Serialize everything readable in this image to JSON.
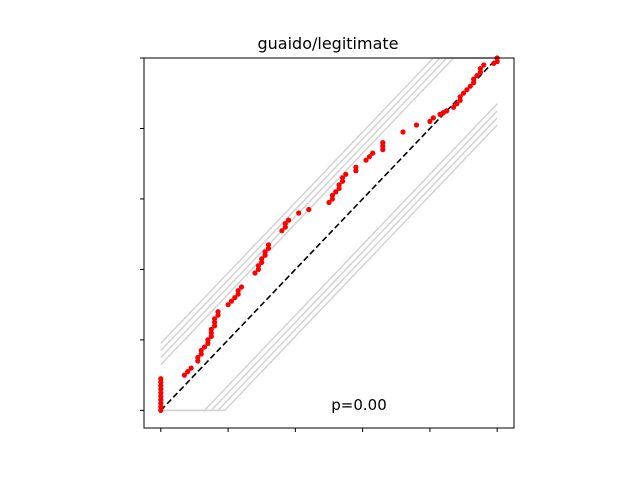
{
  "chart_data": {
    "type": "scatter",
    "title": "guaido/legitimate",
    "xlabel": "",
    "ylabel": "",
    "xlim": [
      -0.05,
      1.05
    ],
    "ylim": [
      -0.05,
      1.0
    ],
    "x_ticks": [
      0,
      0.2,
      0.4,
      0.6,
      0.8,
      1.0
    ],
    "y_ticks": [
      0,
      0.2,
      0.4,
      0.6,
      0.8,
      1.0
    ],
    "tick_labels_visible": false,
    "grid": false,
    "annotation": "p=0.00",
    "colors": {
      "points": "#ff0000",
      "reference": "#000000",
      "bands": "#d3d3d3"
    },
    "reference_line": {
      "style": "dashed",
      "from": [
        0,
        0
      ],
      "to": [
        1,
        1
      ]
    },
    "bands": {
      "upper_offsets": [
        0.13,
        0.15,
        0.17,
        0.19
      ],
      "lower_offsets": [
        -0.13,
        -0.15,
        -0.17,
        -0.19
      ]
    },
    "series": [
      {
        "points": [
          [
            0.0,
            0.0
          ],
          [
            0.0,
            0.01
          ],
          [
            0.0,
            0.02
          ],
          [
            0.0,
            0.03
          ],
          [
            0.0,
            0.04
          ],
          [
            0.0,
            0.05
          ],
          [
            0.0,
            0.06
          ],
          [
            0.0,
            0.07
          ],
          [
            0.0,
            0.08
          ],
          [
            0.0,
            0.09
          ],
          [
            0.07,
            0.1
          ],
          [
            0.08,
            0.11
          ],
          [
            0.09,
            0.12
          ],
          [
            0.11,
            0.14
          ],
          [
            0.11,
            0.15
          ],
          [
            0.12,
            0.16
          ],
          [
            0.12,
            0.17
          ],
          [
            0.13,
            0.18
          ],
          [
            0.14,
            0.19
          ],
          [
            0.14,
            0.2
          ],
          [
            0.15,
            0.21
          ],
          [
            0.15,
            0.22
          ],
          [
            0.15,
            0.23
          ],
          [
            0.16,
            0.24
          ],
          [
            0.16,
            0.25
          ],
          [
            0.16,
            0.26
          ],
          [
            0.17,
            0.27
          ],
          [
            0.17,
            0.28
          ],
          [
            0.2,
            0.3
          ],
          [
            0.21,
            0.31
          ],
          [
            0.22,
            0.32
          ],
          [
            0.23,
            0.33
          ],
          [
            0.23,
            0.34
          ],
          [
            0.24,
            0.35
          ],
          [
            0.28,
            0.39
          ],
          [
            0.29,
            0.4
          ],
          [
            0.29,
            0.41
          ],
          [
            0.3,
            0.42
          ],
          [
            0.3,
            0.43
          ],
          [
            0.31,
            0.44
          ],
          [
            0.31,
            0.45
          ],
          [
            0.32,
            0.46
          ],
          [
            0.32,
            0.47
          ],
          [
            0.36,
            0.51
          ],
          [
            0.37,
            0.52
          ],
          [
            0.37,
            0.53
          ],
          [
            0.38,
            0.54
          ],
          [
            0.41,
            0.56
          ],
          [
            0.44,
            0.57
          ],
          [
            0.5,
            0.59
          ],
          [
            0.51,
            0.6
          ],
          [
            0.51,
            0.61
          ],
          [
            0.52,
            0.62
          ],
          [
            0.53,
            0.63
          ],
          [
            0.53,
            0.64
          ],
          [
            0.54,
            0.65
          ],
          [
            0.54,
            0.66
          ],
          [
            0.55,
            0.67
          ],
          [
            0.58,
            0.68
          ],
          [
            0.58,
            0.69
          ],
          [
            0.61,
            0.71
          ],
          [
            0.62,
            0.72
          ],
          [
            0.63,
            0.73
          ],
          [
            0.66,
            0.74
          ],
          [
            0.66,
            0.75
          ],
          [
            0.66,
            0.76
          ],
          [
            0.72,
            0.79
          ],
          [
            0.76,
            0.81
          ],
          [
            0.8,
            0.82
          ],
          [
            0.81,
            0.83
          ],
          [
            0.83,
            0.84
          ],
          [
            0.84,
            0.845
          ],
          [
            0.85,
            0.85
          ],
          [
            0.87,
            0.86
          ],
          [
            0.88,
            0.87
          ],
          [
            0.89,
            0.88
          ],
          [
            0.89,
            0.89
          ],
          [
            0.9,
            0.9
          ],
          [
            0.91,
            0.91
          ],
          [
            0.92,
            0.92
          ],
          [
            0.93,
            0.93
          ],
          [
            0.93,
            0.94
          ],
          [
            0.94,
            0.95
          ],
          [
            0.95,
            0.96
          ],
          [
            0.95,
            0.97
          ],
          [
            0.96,
            0.98
          ],
          [
            0.99,
            0.985
          ],
          [
            1.0,
            0.99
          ],
          [
            1.0,
            1.0
          ]
        ]
      }
    ]
  }
}
